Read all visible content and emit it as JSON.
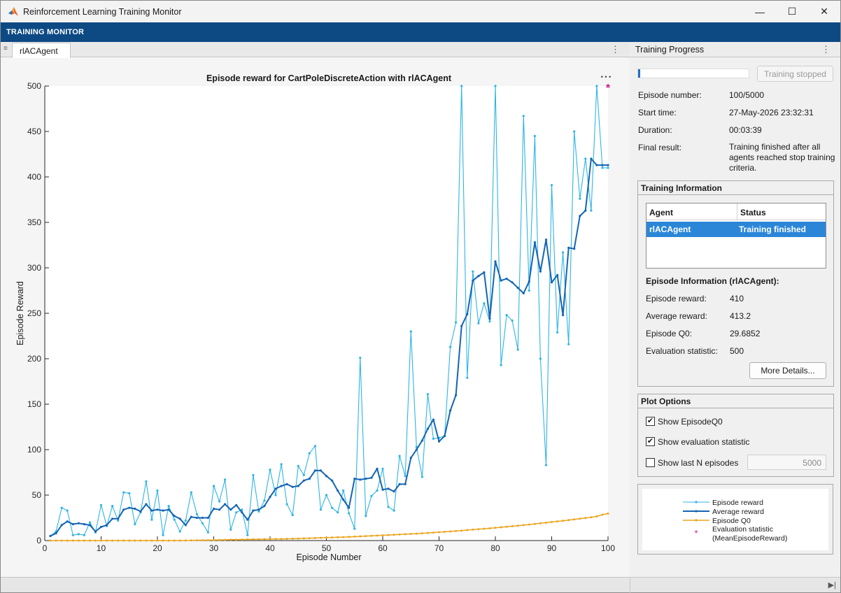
{
  "window": {
    "title": "Reinforcement Learning Training Monitor",
    "controls": {
      "minimize": "—",
      "maximize": "☐",
      "close": "✕"
    }
  },
  "ribbon": {
    "label": "TRAINING MONITOR"
  },
  "tabs": [
    {
      "label": "rlACAgent"
    }
  ],
  "chart_data": {
    "type": "line",
    "title": "Episode reward for CartPoleDiscreteAction with rlACAgent",
    "xlabel": "Episode Number",
    "ylabel": "Episode Reward",
    "xlim": [
      0,
      100
    ],
    "ylim": [
      0,
      500
    ],
    "xticks": [
      0,
      10,
      20,
      30,
      40,
      50,
      60,
      70,
      80,
      90,
      100
    ],
    "yticks": [
      0,
      50,
      100,
      150,
      200,
      250,
      300,
      350,
      400,
      450,
      500
    ],
    "grid": false,
    "legend_placement": "right-panel",
    "series": [
      {
        "name": "Episode reward",
        "color": "#2eb4e6",
        "x": [
          1,
          2,
          3,
          4,
          5,
          6,
          7,
          8,
          9,
          10,
          11,
          12,
          13,
          14,
          15,
          16,
          17,
          18,
          19,
          20,
          21,
          22,
          23,
          24,
          25,
          26,
          27,
          28,
          29,
          30,
          31,
          32,
          33,
          34,
          35,
          36,
          37,
          38,
          39,
          40,
          41,
          42,
          43,
          44,
          45,
          46,
          47,
          48,
          49,
          50,
          51,
          52,
          53,
          54,
          55,
          56,
          57,
          58,
          59,
          60,
          61,
          62,
          63,
          64,
          65,
          66,
          67,
          68,
          69,
          70,
          71,
          72,
          73,
          74,
          75,
          76,
          77,
          78,
          79,
          80,
          81,
          82,
          83,
          84,
          85,
          86,
          87,
          88,
          89,
          90,
          91,
          92,
          93,
          94,
          95,
          96,
          97,
          98,
          99,
          100
        ],
        "values": [
          5,
          10,
          36,
          33,
          6,
          7,
          6,
          20,
          9,
          39,
          16,
          38,
          22,
          53,
          52,
          18,
          31,
          65,
          23,
          55,
          6,
          38,
          23,
          10,
          22,
          53,
          29,
          19,
          9,
          60,
          43,
          67,
          12,
          31,
          34,
          6,
          72,
          32,
          44,
          78,
          50,
          84,
          40,
          28,
          82,
          72,
          96,
          104,
          34,
          50,
          36,
          31,
          55,
          30,
          13,
          201,
          27,
          49,
          55,
          79,
          37,
          33,
          93,
          71,
          230,
          103,
          70,
          161,
          112,
          113,
          115,
          213,
          240,
          500,
          179,
          296,
          239,
          261,
          241,
          500,
          193,
          248,
          242,
          210,
          467,
          275,
          445,
          200,
          83,
          391,
          229,
          317,
          216,
          450,
          376,
          420,
          363,
          500,
          410,
          410
        ]
      },
      {
        "name": "Average reward",
        "color": "#1565b3",
        "x": [
          1,
          2,
          3,
          4,
          5,
          6,
          7,
          8,
          9,
          10,
          11,
          12,
          13,
          14,
          15,
          16,
          17,
          18,
          19,
          20,
          21,
          22,
          23,
          24,
          25,
          26,
          27,
          28,
          29,
          30,
          31,
          32,
          33,
          34,
          35,
          36,
          37,
          38,
          39,
          40,
          41,
          42,
          43,
          44,
          45,
          46,
          47,
          48,
          49,
          50,
          51,
          52,
          53,
          54,
          55,
          56,
          57,
          58,
          59,
          60,
          61,
          62,
          63,
          64,
          65,
          66,
          67,
          68,
          69,
          70,
          71,
          72,
          73,
          74,
          75,
          76,
          77,
          78,
          79,
          80,
          81,
          82,
          83,
          84,
          85,
          86,
          87,
          88,
          89,
          90,
          91,
          92,
          93,
          94,
          95,
          96,
          97,
          98,
          99,
          100
        ],
        "values": [
          5,
          8,
          17,
          21,
          18,
          19,
          18,
          17,
          10,
          15,
          17,
          24,
          24,
          34,
          36,
          35,
          32,
          40,
          33,
          34,
          33,
          34,
          27,
          24,
          17,
          26,
          25,
          25,
          25,
          35,
          34,
          40,
          34,
          39,
          31,
          23,
          33,
          34,
          38,
          48,
          57,
          60,
          62,
          59,
          60,
          66,
          68,
          77,
          77,
          71,
          66,
          55,
          45,
          36,
          68,
          67,
          68,
          69,
          79,
          56,
          57,
          54,
          62,
          62,
          91,
          100,
          110,
          123,
          133,
          109,
          115,
          143,
          160,
          236,
          249,
          286,
          291,
          295,
          244,
          307,
          286,
          288,
          284,
          278,
          272,
          285,
          328,
          296,
          331,
          284,
          292,
          248,
          322,
          321,
          357,
          363,
          420,
          413,
          413,
          413
        ]
      },
      {
        "name": "Episode Q0",
        "color": "#eaa51f",
        "x": [
          1,
          2,
          3,
          4,
          5,
          6,
          7,
          8,
          9,
          10,
          11,
          12,
          13,
          14,
          15,
          16,
          17,
          18,
          19,
          20,
          21,
          22,
          23,
          24,
          25,
          26,
          27,
          28,
          29,
          30,
          31,
          32,
          33,
          34,
          35,
          36,
          37,
          38,
          39,
          40,
          41,
          42,
          43,
          44,
          45,
          46,
          47,
          48,
          49,
          50,
          51,
          52,
          53,
          54,
          55,
          56,
          57,
          58,
          59,
          60,
          61,
          62,
          63,
          64,
          65,
          66,
          67,
          68,
          69,
          70,
          71,
          72,
          73,
          74,
          75,
          76,
          77,
          78,
          79,
          80,
          81,
          82,
          83,
          84,
          85,
          86,
          87,
          88,
          89,
          90,
          91,
          92,
          93,
          94,
          95,
          96,
          97,
          98,
          99,
          100
        ],
        "values": [
          0,
          0,
          0,
          0,
          0,
          0,
          0,
          0,
          0,
          0,
          0,
          0,
          0,
          0,
          0,
          0,
          0,
          0,
          0,
          0,
          0,
          0,
          0,
          0,
          0.1,
          0.2,
          0.3,
          0.4,
          0.5,
          0.6,
          0.7,
          0.8,
          0.9,
          1.0,
          1.1,
          1.2,
          1.3,
          1.4,
          1.5,
          1.6,
          1.7,
          1.8,
          1.9,
          2.0,
          2.2,
          2.4,
          2.6,
          2.8,
          3.0,
          3.2,
          3.4,
          3.6,
          3.8,
          4.0,
          4.3,
          4.6,
          4.9,
          5.2,
          5.5,
          5.8,
          6.1,
          6.4,
          6.7,
          7.0,
          7.3,
          7.6,
          8.0,
          8.4,
          8.8,
          9.2,
          9.6,
          10.0,
          10.5,
          11.0,
          11.5,
          12.0,
          12.5,
          13.0,
          13.5,
          14.0,
          14.6,
          15.2,
          15.8,
          16.4,
          17.0,
          17.6,
          18.3,
          19.0,
          19.7,
          20.4,
          21.1,
          21.8,
          22.5,
          23.2,
          24.0,
          24.8,
          25.6,
          26.5,
          28.5,
          29.7
        ]
      },
      {
        "name": "Evaluation statistic (MeanEpisodeReward)",
        "color": "#d6148c",
        "x": [
          100
        ],
        "values": [
          500
        ]
      }
    ]
  },
  "chart_toolbar": {
    "label": "• • •"
  },
  "progress": {
    "header": "Training Progress",
    "fraction": 0.02,
    "stop_button": "Training stopped",
    "episode_number_label": "Episode number:",
    "episode_number_value": "100/5000",
    "start_time_label": "Start time:",
    "start_time_value": "27-May-2026 23:32:31",
    "duration_label": "Duration:",
    "duration_value": "00:03:39",
    "final_result_label": "Final result:",
    "final_result_value": "Training finished after all agents reached stop training criteria."
  },
  "training_info": {
    "title": "Training Information",
    "col_agent": "Agent",
    "col_status": "Status",
    "row_agent": "rlACAgent",
    "row_status": "Training finished",
    "episode_info_title": "Episode Information (rlACAgent):",
    "episode_reward_label": "Episode reward:",
    "episode_reward_value": "410",
    "average_reward_label": "Average reward:",
    "average_reward_value": "413.2",
    "episode_q0_label": "Episode Q0:",
    "episode_q0_value": "29.6852",
    "eval_stat_label": "Evaluation statistic:",
    "eval_stat_value": "500",
    "more_details": "More Details..."
  },
  "plot_options": {
    "title": "Plot Options",
    "show_q0": "Show EpisodeQ0",
    "show_eval": "Show evaluation statistic",
    "show_last_n": "Show last N episodes",
    "last_n_value": "5000",
    "show_q0_checked": true,
    "show_eval_checked": true,
    "show_last_n_checked": false
  },
  "legend": {
    "episode_reward": "Episode reward",
    "average_reward": "Average reward",
    "episode_q0": "Episode Q0",
    "eval_stat_line1": "Evaluation statistic",
    "eval_stat_line2": "(MeanEpisodeReward)"
  }
}
